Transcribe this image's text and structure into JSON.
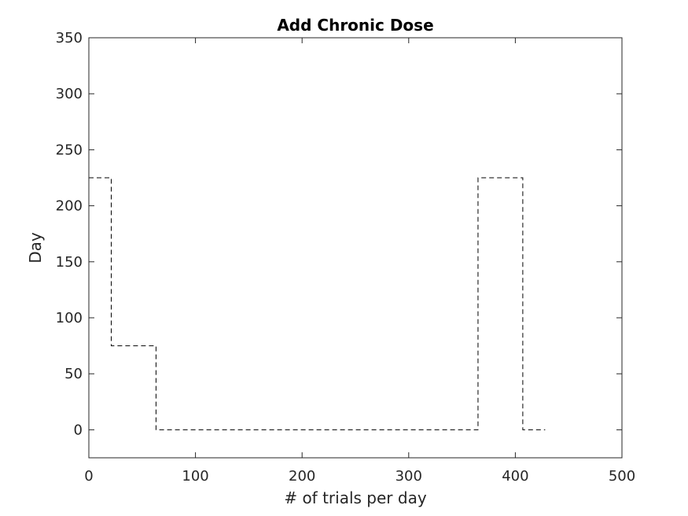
{
  "chart_data": {
    "type": "line",
    "title": "Add Chronic Dose",
    "xlabel": "# of trials per day",
    "ylabel": "Day",
    "xlim": [
      0,
      500
    ],
    "ylim": [
      -25,
      350
    ],
    "xticks": [
      0,
      100,
      200,
      300,
      400,
      500
    ],
    "yticks": [
      0,
      50,
      100,
      150,
      200,
      250,
      300,
      350
    ],
    "xtick_labels": [
      "0",
      "100",
      "200",
      "300",
      "400",
      "500"
    ],
    "ytick_labels": [
      "0",
      "50",
      "100",
      "150",
      "200",
      "250",
      "300",
      "350"
    ],
    "grid": false,
    "legend": "none",
    "series": [
      {
        "style": "dashed",
        "color": "#000000",
        "x": [
          0,
          21,
          21,
          63,
          63,
          365,
          365,
          407,
          407,
          428
        ],
        "y": [
          225,
          225,
          75,
          75,
          0,
          0,
          225,
          225,
          0,
          0
        ]
      }
    ]
  }
}
